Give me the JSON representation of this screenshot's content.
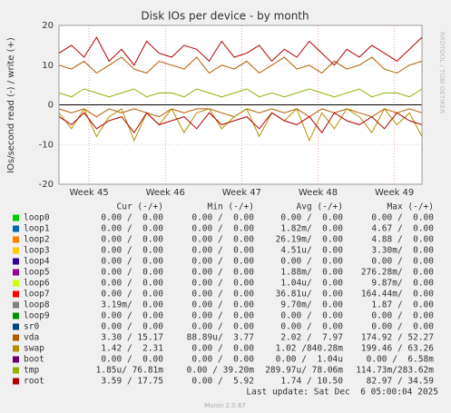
{
  "chart_data": {
    "type": "line",
    "title": "Disk IOs per device - by month",
    "y_label": "IOs/second read (-) / write (+)",
    "side_text": "RRDTOOL / TOBI OETIKER",
    "x": [
      0,
      1,
      2,
      3,
      4,
      5,
      6,
      7,
      8,
      9,
      10,
      11,
      12,
      13,
      14,
      15,
      16,
      17,
      18,
      19,
      20,
      21,
      22,
      23,
      24,
      25,
      26,
      27,
      28,
      29
    ],
    "xlim": [
      0,
      29
    ],
    "xticks": [
      {
        "value": 2.4,
        "label": "Week 45"
      },
      {
        "value": 8.5,
        "label": "Week 46"
      },
      {
        "value": 14.6,
        "label": "Week 47"
      },
      {
        "value": 20.7,
        "label": "Week 48"
      },
      {
        "value": 26.8,
        "label": "Week 49"
      }
    ],
    "ylim": [
      -20,
      20
    ],
    "yticks": [
      -20,
      -10,
      0,
      10,
      20
    ],
    "grid": true,
    "columns": [
      "Cur (-/+)",
      "Min (-/+)",
      "Avg (-/+)",
      "Max (-/+)"
    ],
    "rows": [
      {
        "name": "loop0",
        "color": "#00cc00",
        "cells": [
          "0.00 /  0.00",
          "0.00 /  0.00",
          "0.00 /  0.00",
          "0.00 /  0.00"
        ]
      },
      {
        "name": "loop1",
        "color": "#0066b3",
        "cells": [
          "0.00 /  0.00",
          "0.00 /  0.00",
          "1.82m/  0.00",
          "4.67 /  0.00"
        ]
      },
      {
        "name": "loop2",
        "color": "#ff8000",
        "cells": [
          "0.00 /  0.00",
          "0.00 /  0.00",
          "26.19m/  0.00",
          "4.88 /  0.00"
        ]
      },
      {
        "name": "loop3",
        "color": "#ffcc00",
        "cells": [
          "0.00 /  0.00",
          "0.00 /  0.00",
          "4.51u/  0.00",
          "3.30m/  0.00"
        ]
      },
      {
        "name": "loop4",
        "color": "#330099",
        "cells": [
          "0.00 /  0.00",
          "0.00 /  0.00",
          "0.00 /  0.00",
          "0.00 /  0.00"
        ]
      },
      {
        "name": "loop5",
        "color": "#990099",
        "cells": [
          "0.00 /  0.00",
          "0.00 /  0.00",
          "1.88m/  0.00",
          "276.28m/  0.00"
        ]
      },
      {
        "name": "loop6",
        "color": "#ccff00",
        "cells": [
          "0.00 /  0.00",
          "0.00 /  0.00",
          "1.04u/  0.00",
          "9.87m/  0.00"
        ]
      },
      {
        "name": "loop7",
        "color": "#ff0000",
        "cells": [
          "0.00 /  0.00",
          "0.00 /  0.00",
          "36.81u/  0.00",
          "164.44m/  0.00"
        ]
      },
      {
        "name": "loop8",
        "color": "#808080",
        "cells": [
          "3.19m/  0.00",
          "0.00 /  0.00",
          "9.70m/  0.00",
          "1.87 /  0.00"
        ]
      },
      {
        "name": "loop9",
        "color": "#008f00",
        "cells": [
          "0.00 /  0.00",
          "0.00 /  0.00",
          "0.00 /  0.00",
          "0.00 /  0.00"
        ]
      },
      {
        "name": "sr0",
        "color": "#00487d",
        "cells": [
          "0.00 /  0.00",
          "0.00 /  0.00",
          "0.00 /  0.00",
          "0.00 /  0.00"
        ]
      },
      {
        "name": "vda",
        "color": "#b35a00",
        "cells": [
          "3.30 / 15.17",
          "88.89u/  3.77",
          "2.02 /  7.97",
          "174.92 / 52.27"
        ],
        "read": [
          -1,
          -2,
          -1,
          -3,
          -1,
          -2,
          -1,
          -2,
          -3,
          -1,
          -2,
          -1,
          -1,
          -2,
          -3,
          -1,
          -2,
          -1,
          -2,
          -1,
          -3,
          -1,
          -2,
          -1,
          -2,
          -3,
          -1,
          -2,
          -1,
          -2
        ],
        "write": [
          10,
          9,
          11,
          8,
          10,
          12,
          9,
          8,
          11,
          10,
          9,
          12,
          8,
          10,
          9,
          11,
          8,
          10,
          12,
          9,
          10,
          8,
          11,
          9,
          10,
          12,
          9,
          8,
          10,
          11
        ]
      },
      {
        "name": "swap",
        "color": "#b38f00",
        "cells": [
          "1.42 /  2.31",
          "0.00 /  0.00",
          "1.02 /840.28m",
          "199.46 / 63.26"
        ],
        "read": [
          -2,
          -6,
          -1,
          -8,
          -3,
          -1,
          -9,
          -2,
          -5,
          -1,
          -7,
          -2,
          -1,
          -6,
          -3,
          -1,
          -8,
          -2,
          -4,
          -1,
          -9,
          -2,
          -6,
          -1,
          -3,
          -7,
          -1,
          -5,
          -2,
          -8
        ]
      },
      {
        "name": "boot",
        "color": "#6b006b",
        "cells": [
          "0.00 /  0.00",
          "0.00 /  0.00",
          "0.00 /  1.04u",
          "0.00 /  6.58m"
        ]
      },
      {
        "name": "tmp",
        "color": "#8fb300",
        "cells": [
          "1.85u/ 76.81m",
          "0.00 / 39.20m",
          "289.97u/ 78.06m",
          "114.73m/283.62m"
        ],
        "write": [
          3,
          2,
          4,
          3,
          2,
          3,
          4,
          2,
          3,
          3,
          2,
          4,
          3,
          2,
          3,
          4,
          2,
          3,
          2,
          3,
          4,
          3,
          2,
          3,
          4,
          2,
          3,
          3,
          2,
          4
        ]
      },
      {
        "name": "root",
        "color": "#b30000",
        "cells": [
          "3.59 / 17.75",
          "0.00 /  5.92",
          "1.74 / 10.50",
          "82.97 / 34.59"
        ],
        "read": [
          -3,
          -5,
          -2,
          -6,
          -4,
          -3,
          -7,
          -2,
          -5,
          -4,
          -3,
          -6,
          -2,
          -5,
          -4,
          -3,
          -6,
          -2,
          -4,
          -5,
          -3,
          -7,
          -2,
          -4,
          -5,
          -3,
          -6,
          -2,
          -4,
          -5
        ],
        "write": [
          13,
          15,
          12,
          17,
          11,
          14,
          10,
          16,
          13,
          12,
          15,
          14,
          11,
          16,
          12,
          13,
          15,
          11,
          14,
          12,
          16,
          13,
          10,
          14,
          12,
          15,
          13,
          11,
          14,
          17
        ]
      }
    ],
    "last_update": "Last update: Sat Dec  6 05:00:04 2025",
    "footer": "Munin 2.0.67"
  }
}
